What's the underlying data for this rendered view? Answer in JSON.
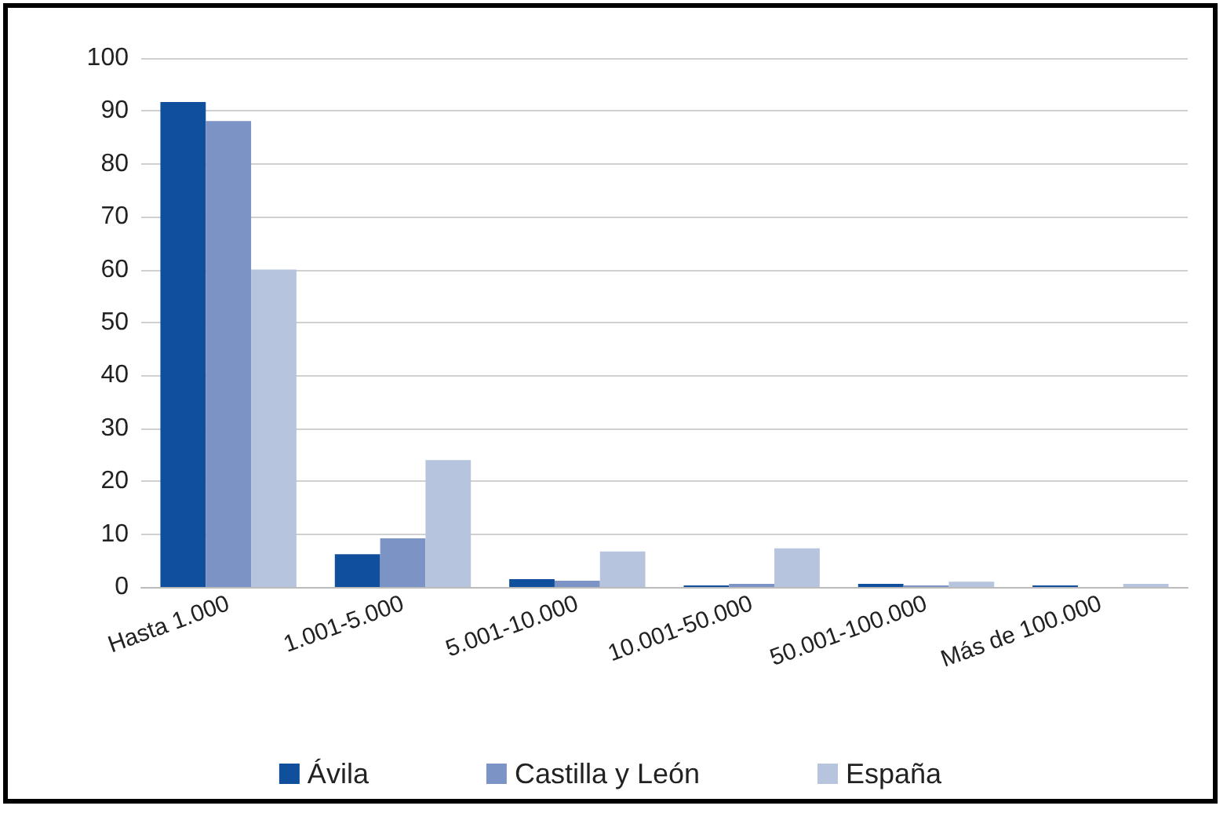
{
  "chart_data": {
    "type": "bar",
    "categories": [
      "Hasta 1.000",
      "1.001-5.000",
      "5.001-10.000",
      "10.001-50.000",
      "50.001-100.000",
      "Más de 100.000"
    ],
    "series": [
      {
        "name": "Ávila",
        "color": "#0f4f9c",
        "values": [
          91.7,
          6.2,
          1.5,
          0.3,
          0.6,
          0.3
        ]
      },
      {
        "name": "Castilla y León",
        "color": "#7b93c5",
        "values": [
          88.1,
          9.2,
          1.2,
          0.6,
          0.3,
          0
        ]
      },
      {
        "name": "España",
        "color": "#b6c4dd",
        "values": [
          60,
          24,
          6.7,
          7.3,
          1,
          0.6
        ]
      }
    ],
    "ylim": [
      0,
      100
    ],
    "yticks": [
      0,
      10,
      20,
      30,
      40,
      50,
      60,
      70,
      80,
      90,
      100
    ],
    "grid": "y",
    "legend": "bottom"
  }
}
